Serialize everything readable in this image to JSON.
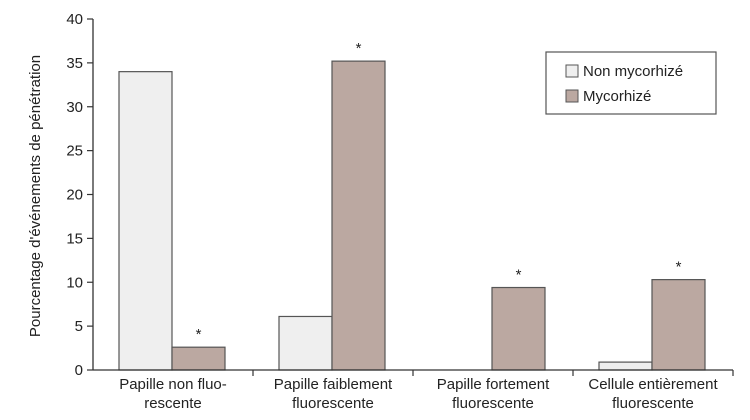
{
  "chart_data": {
    "type": "bar",
    "title": "",
    "xlabel": "",
    "ylabel": "Pourcentage d'événements de pénétration",
    "ylim": [
      0,
      40
    ],
    "yticks": [
      0,
      5,
      10,
      15,
      20,
      25,
      30,
      35,
      40
    ],
    "grid": false,
    "legend_position": "top-right",
    "categories": [
      [
        "Papille non fluo-",
        "rescente"
      ],
      [
        "Papille faiblement",
        "fluorescente"
      ],
      [
        "Papille fortement",
        "fluorescente"
      ],
      [
        "Cellule entièrement",
        "fluorescente"
      ]
    ],
    "series": [
      {
        "name": "Non mycorhizé",
        "color": "#efefef",
        "values": [
          34.0,
          6.1,
          0.0,
          0.9
        ],
        "annotations": [
          "",
          "",
          "",
          ""
        ]
      },
      {
        "name": "Mycorhizé",
        "color": "#bba8a1",
        "values": [
          2.6,
          35.2,
          9.4,
          10.3
        ],
        "annotations": [
          "*",
          "*",
          "*",
          "*"
        ]
      }
    ]
  }
}
